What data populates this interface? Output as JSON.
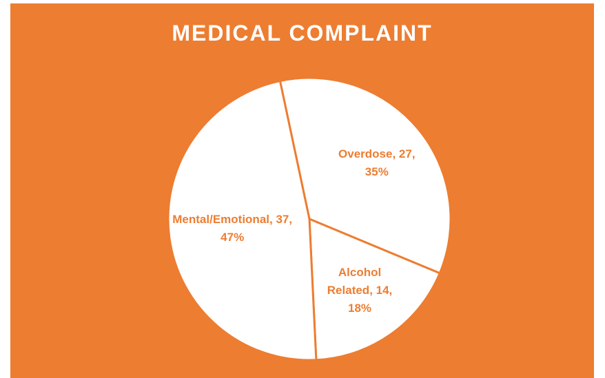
{
  "chart_data": {
    "type": "pie",
    "title": "MEDICAL COMPLAINT",
    "categories": [
      "Overdose",
      "Alcohol Related",
      "Mental/Emotional"
    ],
    "values": [
      27,
      14,
      37
    ],
    "value_labels": [
      "Overdose, 27, 35%",
      "Alcohol Related, 14, 18%",
      "Mental/Emotional, 37, 47%"
    ],
    "color": "#ffffff",
    "background": "#ed7d31",
    "label_color": "#ed7d31"
  }
}
